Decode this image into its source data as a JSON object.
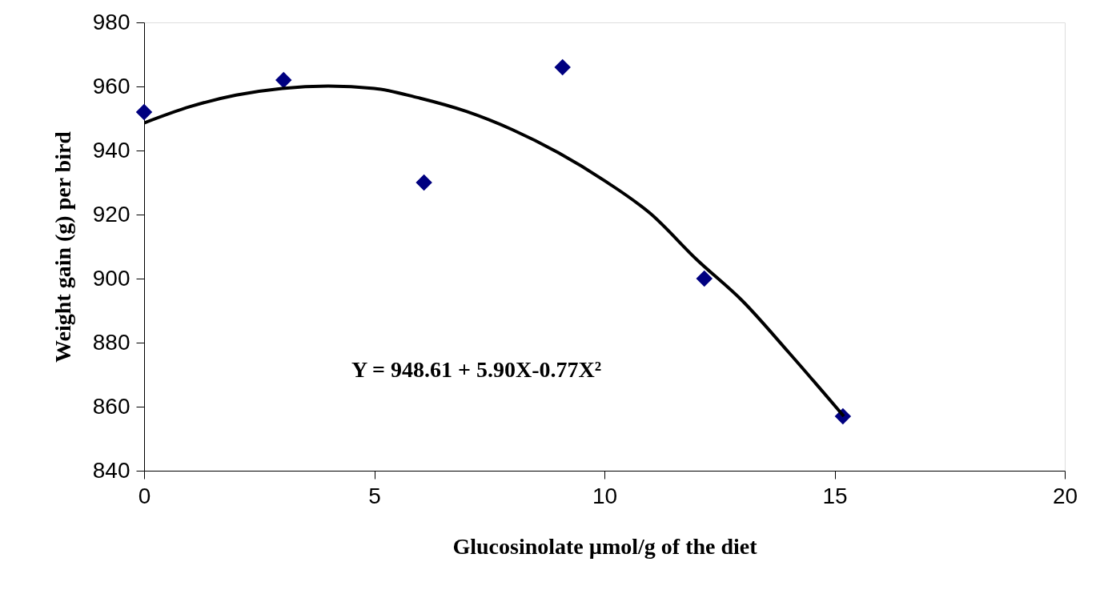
{
  "chart_data": {
    "type": "scatter",
    "xlabel": "Glucosinolate µmol/g of the diet",
    "ylabel": "Weight gain (g) per bird",
    "x": [
      0,
      3.03,
      6.08,
      9.09,
      12.17,
      15.18
    ],
    "xlim": [
      0,
      20
    ],
    "xticks": [
      0,
      5,
      10,
      15,
      20
    ],
    "ylim": [
      840,
      980
    ],
    "yticks": [
      840,
      860,
      880,
      900,
      920,
      940,
      960,
      980
    ],
    "grid": false,
    "marker": "diamond",
    "series": [
      {
        "color": "#000080",
        "values": [
          952,
          962,
          930,
          966,
          900,
          857
        ]
      },
      {
        "type": "line",
        "color": "#000000",
        "line_style": "solid",
        "marker": "none",
        "x": [
          0,
          1,
          2,
          3,
          4,
          5,
          6,
          7,
          8,
          9,
          10,
          11,
          12,
          13,
          14,
          15.2
        ],
        "values": [
          948.6,
          953.7,
          957.3,
          959.4,
          960.1,
          959.4,
          956.3,
          952.2,
          946.5,
          939.3,
          930.6,
          920.3,
          906,
          893,
          877,
          857
        ]
      }
    ],
    "annotations": [
      "Y = 948.61 + 5.90X-0.77X²"
    ]
  }
}
